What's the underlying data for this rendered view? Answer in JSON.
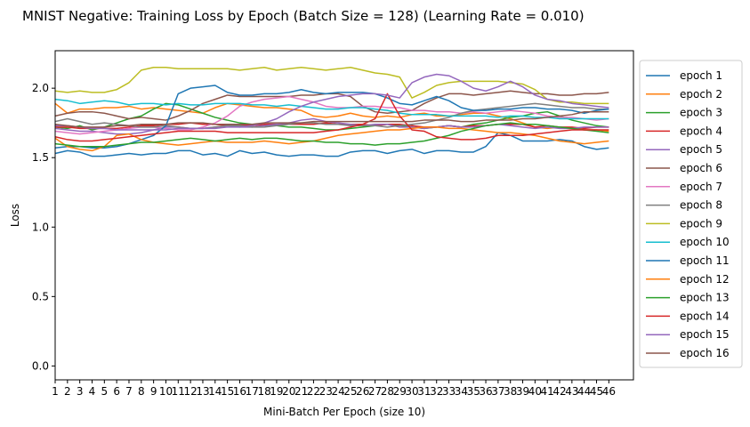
{
  "chart_data": {
    "type": "line",
    "title": "MNIST Negative: Training Loss by Epoch (Batch Size = 128) (Learning Rate = 0.010)",
    "xlabel": "Mini-Batch Per Epoch (size 10)",
    "ylabel": "Loss",
    "xlim": [
      1,
      48
    ],
    "ylim": [
      -0.1,
      2.27
    ],
    "x": [
      1,
      2,
      3,
      4,
      5,
      6,
      7,
      8,
      9,
      10,
      11,
      12,
      13,
      14,
      15,
      16,
      17,
      18,
      19,
      20,
      21,
      22,
      23,
      24,
      25,
      26,
      27,
      28,
      29,
      30,
      31,
      32,
      33,
      34,
      35,
      36,
      37,
      38,
      39,
      40,
      41,
      42,
      43,
      44,
      45,
      46
    ],
    "xticks": [
      "1",
      "2",
      "3",
      "4",
      "5",
      "6",
      "7",
      "8",
      "9",
      "10",
      "11",
      "12",
      "13",
      "14",
      "15",
      "16",
      "17",
      "18",
      "19",
      "20",
      "21",
      "22",
      "23",
      "24",
      "25",
      "26",
      "27",
      "28",
      "29",
      "30",
      "31",
      "32",
      "33",
      "34",
      "35",
      "36",
      "37",
      "38",
      "39",
      "40",
      "41",
      "42",
      "43",
      "44",
      "45",
      "46"
    ],
    "yticks": [
      "0.0",
      "0.5",
      "1.0",
      "1.5",
      "2.0"
    ],
    "ytick_values": [
      0.0,
      0.5,
      1.0,
      1.5,
      2.0
    ],
    "grid": false,
    "legend_position": "right-outside",
    "series": [
      {
        "name": "epoch 1",
        "color": "#1f77b4",
        "values": [
          1.53,
          1.55,
          1.54,
          1.51,
          1.51,
          1.52,
          1.53,
          1.52,
          1.53,
          1.53,
          1.55,
          1.55,
          1.52,
          1.53,
          1.51,
          1.55,
          1.53,
          1.54,
          1.52,
          1.51,
          1.52,
          1.52,
          1.51,
          1.51,
          1.54,
          1.55,
          1.55,
          1.53,
          1.55,
          1.56,
          1.53,
          1.55,
          1.55,
          1.54,
          1.54,
          1.58,
          1.68,
          1.66,
          1.62,
          1.62,
          1.62,
          1.63,
          1.62,
          1.58,
          1.56,
          1.57
        ]
      },
      {
        "name": "epoch 2",
        "color": "#ff7f0e",
        "values": [
          1.89,
          1.82,
          1.85,
          1.85,
          1.86,
          1.86,
          1.87,
          1.85,
          1.86,
          1.85,
          1.84,
          1.83,
          1.82,
          1.86,
          1.89,
          1.88,
          1.87,
          1.86,
          1.86,
          1.85,
          1.84,
          1.8,
          1.79,
          1.8,
          1.82,
          1.8,
          1.79,
          1.8,
          1.79,
          1.81,
          1.82,
          1.8,
          1.8,
          1.81,
          1.82,
          1.82,
          1.8,
          1.78,
          1.75,
          1.72,
          1.71,
          1.72,
          1.71,
          1.7,
          1.7,
          1.69
        ]
      },
      {
        "name": "epoch 3",
        "color": "#2ca02c",
        "values": [
          1.72,
          1.71,
          1.73,
          1.7,
          1.72,
          1.75,
          1.78,
          1.8,
          1.85,
          1.89,
          1.88,
          1.85,
          1.82,
          1.79,
          1.77,
          1.75,
          1.74,
          1.73,
          1.73,
          1.72,
          1.72,
          1.71,
          1.7,
          1.7,
          1.71,
          1.72,
          1.73,
          1.74,
          1.73,
          1.72,
          1.71,
          1.72,
          1.73,
          1.72,
          1.74,
          1.75,
          1.77,
          1.79,
          1.8,
          1.82,
          1.83,
          1.8,
          1.77,
          1.75,
          1.73,
          1.72
        ]
      },
      {
        "name": "epoch 4",
        "color": "#d62728",
        "values": [
          1.72,
          1.72,
          1.71,
          1.71,
          1.71,
          1.71,
          1.72,
          1.73,
          1.73,
          1.74,
          1.74,
          1.75,
          1.74,
          1.74,
          1.73,
          1.73,
          1.73,
          1.74,
          1.74,
          1.74,
          1.74,
          1.74,
          1.75,
          1.74,
          1.74,
          1.74,
          1.73,
          1.74,
          1.74,
          1.73,
          1.72,
          1.72,
          1.73,
          1.72,
          1.73,
          1.73,
          1.74,
          1.74,
          1.74,
          1.72,
          1.73,
          1.72,
          1.72,
          1.71,
          1.72,
          1.72
        ]
      },
      {
        "name": "epoch 5",
        "color": "#9467bd",
        "values": [
          1.71,
          1.7,
          1.69,
          1.69,
          1.68,
          1.67,
          1.67,
          1.68,
          1.7,
          1.72,
          1.72,
          1.71,
          1.71,
          1.72,
          1.73,
          1.72,
          1.72,
          1.73,
          1.74,
          1.75,
          1.77,
          1.78,
          1.76,
          1.75,
          1.74,
          1.73,
          1.74,
          1.74,
          1.72,
          1.72,
          1.71,
          1.72,
          1.73,
          1.72,
          1.72,
          1.73,
          1.74,
          1.73,
          1.72,
          1.71,
          1.72,
          1.71,
          1.71,
          1.72,
          1.72,
          1.72
        ]
      },
      {
        "name": "epoch 6",
        "color": "#8c564b",
        "values": [
          1.8,
          1.82,
          1.83,
          1.83,
          1.82,
          1.8,
          1.78,
          1.79,
          1.78,
          1.77,
          1.8,
          1.84,
          1.89,
          1.92,
          1.95,
          1.94,
          1.94,
          1.94,
          1.94,
          1.94,
          1.95,
          1.95,
          1.96,
          1.96,
          1.94,
          1.87,
          1.83,
          1.82,
          1.83,
          1.84,
          1.89,
          1.93,
          1.96,
          1.96,
          1.95,
          1.96,
          1.97,
          1.98,
          1.97,
          1.96,
          1.96,
          1.95,
          1.95,
          1.96,
          1.96,
          1.97
        ]
      },
      {
        "name": "epoch 7",
        "color": "#e377c2",
        "values": [
          1.69,
          1.68,
          1.67,
          1.68,
          1.69,
          1.7,
          1.71,
          1.72,
          1.72,
          1.71,
          1.7,
          1.7,
          1.72,
          1.75,
          1.8,
          1.87,
          1.9,
          1.92,
          1.93,
          1.94,
          1.92,
          1.9,
          1.87,
          1.86,
          1.86,
          1.87,
          1.87,
          1.86,
          1.86,
          1.84,
          1.84,
          1.83,
          1.83,
          1.82,
          1.83,
          1.82,
          1.83,
          1.84,
          1.83,
          1.82,
          1.8,
          1.79,
          1.79,
          1.78,
          1.77,
          1.78
        ]
      },
      {
        "name": "epoch 8",
        "color": "#7f7f7f",
        "values": [
          1.76,
          1.78,
          1.76,
          1.74,
          1.75,
          1.74,
          1.73,
          1.72,
          1.72,
          1.73,
          1.72,
          1.71,
          1.71,
          1.72,
          1.73,
          1.73,
          1.72,
          1.72,
          1.73,
          1.74,
          1.75,
          1.75,
          1.74,
          1.74,
          1.73,
          1.73,
          1.73,
          1.72,
          1.73,
          1.74,
          1.75,
          1.77,
          1.79,
          1.82,
          1.84,
          1.85,
          1.86,
          1.87,
          1.88,
          1.89,
          1.88,
          1.87,
          1.86,
          1.86,
          1.85,
          1.85
        ]
      },
      {
        "name": "epoch 9",
        "color": "#bcbd22",
        "values": [
          1.98,
          1.97,
          1.98,
          1.97,
          1.97,
          1.99,
          2.04,
          2.13,
          2.15,
          2.15,
          2.14,
          2.14,
          2.14,
          2.14,
          2.14,
          2.13,
          2.14,
          2.15,
          2.13,
          2.14,
          2.15,
          2.14,
          2.13,
          2.14,
          2.15,
          2.13,
          2.11,
          2.1,
          2.08,
          1.93,
          1.97,
          2.02,
          2.04,
          2.05,
          2.05,
          2.05,
          2.05,
          2.04,
          2.03,
          1.99,
          1.92,
          1.9,
          1.9,
          1.89,
          1.89,
          1.89
        ]
      },
      {
        "name": "epoch 10",
        "color": "#17becf",
        "values": [
          1.92,
          1.91,
          1.89,
          1.9,
          1.91,
          1.9,
          1.88,
          1.89,
          1.89,
          1.88,
          1.89,
          1.88,
          1.88,
          1.89,
          1.89,
          1.89,
          1.88,
          1.88,
          1.87,
          1.88,
          1.87,
          1.86,
          1.85,
          1.85,
          1.86,
          1.86,
          1.85,
          1.84,
          1.82,
          1.81,
          1.81,
          1.81,
          1.8,
          1.8,
          1.8,
          1.8,
          1.79,
          1.8,
          1.8,
          1.79,
          1.79,
          1.78,
          1.78,
          1.78,
          1.78,
          1.78
        ]
      },
      {
        "name": "epoch 11",
        "color": "#1f77b4",
        "values": [
          1.57,
          1.58,
          1.58,
          1.57,
          1.57,
          1.58,
          1.6,
          1.63,
          1.66,
          1.73,
          1.96,
          2.0,
          2.01,
          2.02,
          1.97,
          1.95,
          1.95,
          1.96,
          1.96,
          1.97,
          1.99,
          1.97,
          1.96,
          1.97,
          1.97,
          1.97,
          1.96,
          1.93,
          1.89,
          1.88,
          1.91,
          1.94,
          1.91,
          1.86,
          1.84,
          1.84,
          1.85,
          1.85,
          1.86,
          1.86,
          1.85,
          1.85,
          1.84,
          1.82,
          1.84,
          1.85
        ]
      },
      {
        "name": "epoch 12",
        "color": "#ff7f0e",
        "values": [
          1.64,
          1.58,
          1.56,
          1.55,
          1.58,
          1.66,
          1.67,
          1.63,
          1.61,
          1.6,
          1.59,
          1.6,
          1.61,
          1.62,
          1.61,
          1.61,
          1.61,
          1.62,
          1.61,
          1.6,
          1.61,
          1.62,
          1.64,
          1.66,
          1.67,
          1.68,
          1.69,
          1.7,
          1.7,
          1.71,
          1.72,
          1.72,
          1.71,
          1.71,
          1.7,
          1.69,
          1.68,
          1.68,
          1.67,
          1.66,
          1.64,
          1.62,
          1.61,
          1.6,
          1.61,
          1.62
        ]
      },
      {
        "name": "epoch 13",
        "color": "#2ca02c",
        "values": [
          1.6,
          1.59,
          1.58,
          1.58,
          1.58,
          1.59,
          1.6,
          1.61,
          1.61,
          1.62,
          1.63,
          1.64,
          1.63,
          1.62,
          1.63,
          1.64,
          1.63,
          1.64,
          1.64,
          1.63,
          1.62,
          1.62,
          1.61,
          1.61,
          1.6,
          1.6,
          1.59,
          1.6,
          1.6,
          1.61,
          1.62,
          1.64,
          1.66,
          1.69,
          1.71,
          1.73,
          1.74,
          1.75,
          1.74,
          1.74,
          1.73,
          1.72,
          1.71,
          1.7,
          1.69,
          1.68
        ]
      },
      {
        "name": "epoch 14",
        "color": "#d62728",
        "values": [
          1.65,
          1.63,
          1.62,
          1.62,
          1.63,
          1.64,
          1.65,
          1.66,
          1.67,
          1.68,
          1.69,
          1.69,
          1.69,
          1.69,
          1.68,
          1.68,
          1.68,
          1.68,
          1.68,
          1.68,
          1.68,
          1.68,
          1.69,
          1.7,
          1.72,
          1.74,
          1.78,
          1.96,
          1.8,
          1.7,
          1.69,
          1.65,
          1.64,
          1.63,
          1.63,
          1.64,
          1.66,
          1.66,
          1.66,
          1.67,
          1.68,
          1.69,
          1.7,
          1.7,
          1.7,
          1.7
        ]
      },
      {
        "name": "epoch 15",
        "color": "#9467bd",
        "values": [
          1.73,
          1.73,
          1.72,
          1.71,
          1.71,
          1.7,
          1.7,
          1.7,
          1.7,
          1.7,
          1.71,
          1.71,
          1.71,
          1.71,
          1.72,
          1.72,
          1.73,
          1.75,
          1.78,
          1.83,
          1.87,
          1.9,
          1.92,
          1.94,
          1.95,
          1.96,
          1.96,
          1.95,
          1.93,
          2.04,
          2.08,
          2.1,
          2.09,
          2.05,
          2.0,
          1.98,
          2.01,
          2.05,
          2.01,
          1.95,
          1.92,
          1.91,
          1.89,
          1.88,
          1.87,
          1.86
        ]
      },
      {
        "name": "epoch 16",
        "color": "#8c564b",
        "values": [
          1.74,
          1.73,
          1.72,
          1.72,
          1.72,
          1.73,
          1.73,
          1.74,
          1.74,
          1.74,
          1.75,
          1.75,
          1.75,
          1.74,
          1.74,
          1.74,
          1.74,
          1.75,
          1.75,
          1.75,
          1.75,
          1.76,
          1.76,
          1.76,
          1.76,
          1.76,
          1.76,
          1.76,
          1.76,
          1.76,
          1.77,
          1.77,
          1.77,
          1.76,
          1.76,
          1.77,
          1.77,
          1.77,
          1.78,
          1.78,
          1.79,
          1.8,
          1.81,
          1.83,
          1.83,
          1.83
        ]
      }
    ]
  }
}
